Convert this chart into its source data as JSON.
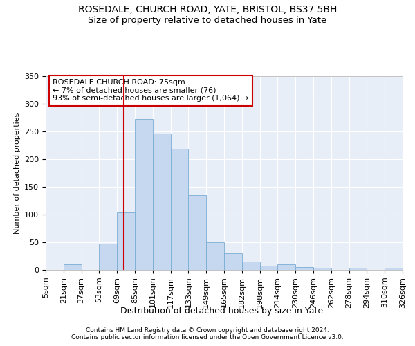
{
  "title1": "ROSEDALE, CHURCH ROAD, YATE, BRISTOL, BS37 5BH",
  "title2": "Size of property relative to detached houses in Yate",
  "xlabel": "Distribution of detached houses by size in Yate",
  "ylabel": "Number of detached properties",
  "bar_values": [
    0,
    10,
    0,
    47,
    104,
    273,
    246,
    219,
    135,
    50,
    30,
    15,
    7,
    10,
    5,
    4,
    0,
    4,
    0,
    4
  ],
  "x_tick_labels": [
    "5sqm",
    "21sqm",
    "37sqm",
    "53sqm",
    "69sqm",
    "85sqm",
    "101sqm",
    "117sqm",
    "133sqm",
    "149sqm",
    "165sqm",
    "182sqm",
    "198sqm",
    "214sqm",
    "230sqm",
    "246sqm",
    "262sqm",
    "278sqm",
    "294sqm",
    "310sqm",
    "326sqm"
  ],
  "bar_color": "#c5d8f0",
  "bar_edge_color": "#7aadd4",
  "vline_color": "#cc0000",
  "annotation_text": "ROSEDALE CHURCH ROAD: 75sqm\n← 7% of detached houses are smaller (76)\n93% of semi-detached houses are larger (1,064) →",
  "annotation_box_color": "white",
  "annotation_box_edge": "#cc0000",
  "ylim": [
    0,
    350
  ],
  "yticks": [
    0,
    50,
    100,
    150,
    200,
    250,
    300,
    350
  ],
  "footer1": "Contains HM Land Registry data © Crown copyright and database right 2024.",
  "footer2": "Contains public sector information licensed under the Open Government Licence v3.0.",
  "bg_color": "#e8eef8",
  "grid_color": "#ffffff",
  "title1_fontsize": 10,
  "title2_fontsize": 9.5,
  "axis_label_fontsize": 9,
  "ylabel_fontsize": 8,
  "tick_fontsize": 8,
  "footer_fontsize": 6.5,
  "annotation_fontsize": 8
}
